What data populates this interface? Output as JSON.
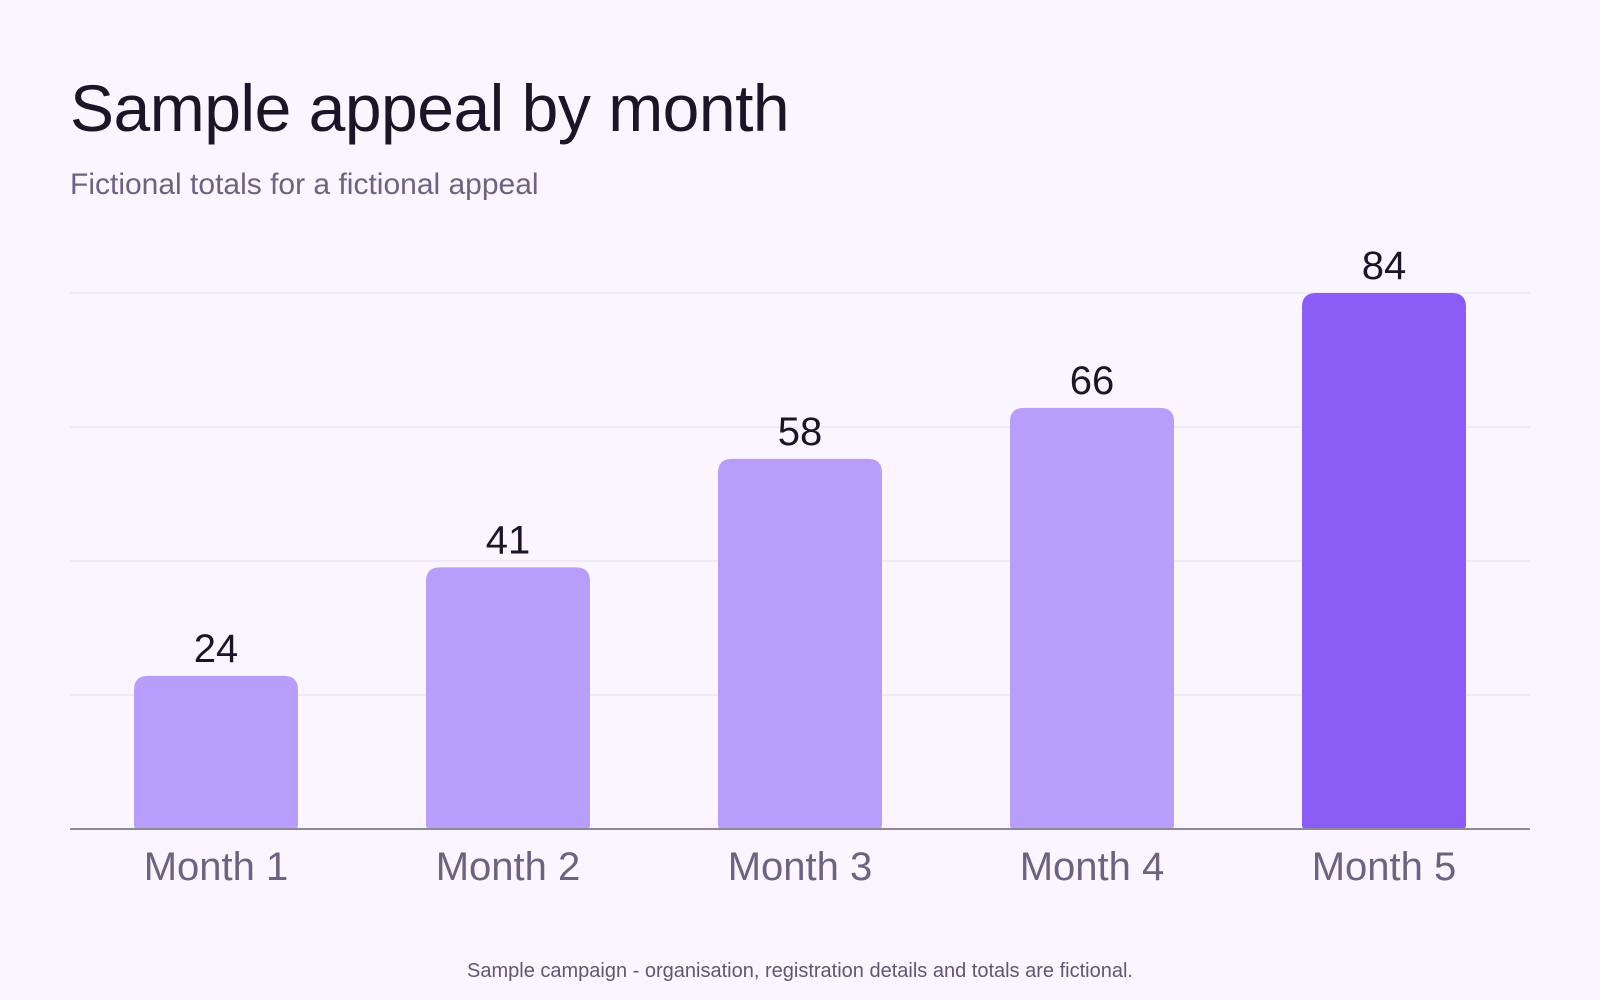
{
  "header": {
    "title": "Sample appeal by month",
    "subtitle": "Fictional totals for a fictional appeal"
  },
  "chart_data": {
    "type": "bar",
    "categories": [
      "Month 1",
      "Month 2",
      "Month 3",
      "Month 4",
      "Month 5"
    ],
    "values": [
      24,
      41,
      58,
      66,
      84
    ],
    "value_labels": [
      "24",
      "41",
      "58",
      "66",
      "84"
    ],
    "ylim": [
      0,
      84
    ],
    "grid": true,
    "highlight_index": 4,
    "colors": {
      "bar": "#b89efa",
      "highlight": "#8b5cf6",
      "grid": "#e4dfec",
      "axis": "#8c8896"
    }
  },
  "footer": {
    "note": "Sample campaign - organisation, registration details and totals are fictional."
  }
}
